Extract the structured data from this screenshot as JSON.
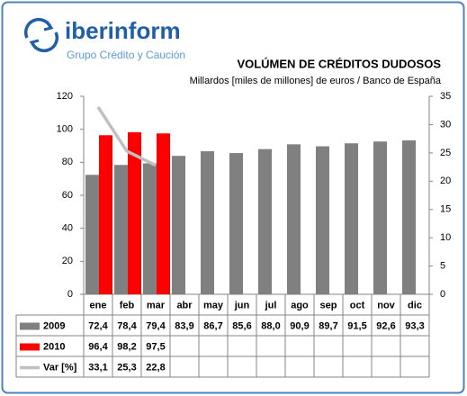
{
  "header": {
    "brand": "iberinform",
    "tagline": "Grupo Crédito y Caución"
  },
  "chart_data": {
    "type": "bar",
    "title": "VOLÚMEN DE CRÉDITOS DUDOSOS",
    "subtitle": "Millardos [miles de millones] de euros / Banco de España",
    "categories": [
      "ene",
      "feb",
      "mar",
      "abr",
      "may",
      "jun",
      "jul",
      "ago",
      "sep",
      "oct",
      "nov",
      "dic"
    ],
    "series": [
      {
        "name": "2009",
        "color": "#808080",
        "type": "bar",
        "values": [
          72.4,
          78.4,
          79.4,
          83.9,
          86.7,
          85.6,
          88.0,
          90.9,
          89.7,
          91.5,
          92.6,
          93.3
        ],
        "value_labels": [
          "72,4",
          "78,4",
          "79,4",
          "83,9",
          "86,7",
          "85,6",
          "88,0",
          "90,9",
          "89,7",
          "91,5",
          "92,6",
          "93,3"
        ]
      },
      {
        "name": "2010",
        "color": "#ff0000",
        "type": "bar",
        "values": [
          96.4,
          98.2,
          97.5,
          null,
          null,
          null,
          null,
          null,
          null,
          null,
          null,
          null
        ],
        "value_labels": [
          "96,4",
          "98,2",
          "97,5",
          null,
          null,
          null,
          null,
          null,
          null,
          null,
          null,
          null
        ]
      },
      {
        "name": "Var [%]",
        "color": "#c0c0c0",
        "type": "line",
        "axis": "y2",
        "values": [
          33.1,
          25.3,
          22.8,
          null,
          null,
          null,
          null,
          null,
          null,
          null,
          null,
          null
        ],
        "value_labels": [
          "33,1",
          "25,3",
          "22,8",
          null,
          null,
          null,
          null,
          null,
          null,
          null,
          null,
          null
        ]
      }
    ],
    "ylim": [
      0,
      120
    ],
    "yticks": [
      0,
      20,
      40,
      60,
      80,
      100,
      120
    ],
    "y2lim": [
      0,
      35
    ],
    "y2ticks": [
      0,
      5,
      10,
      15,
      20,
      25,
      30,
      35
    ],
    "grid": false
  }
}
